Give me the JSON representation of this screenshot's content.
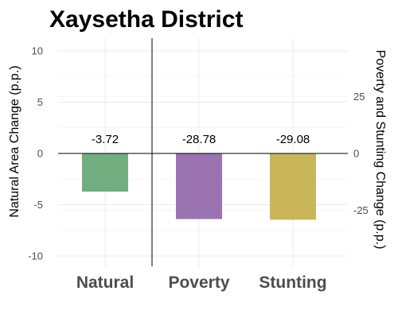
{
  "chart_data": {
    "type": "bar",
    "title": "Xaysetha District",
    "categories": [
      "Natural",
      "Poverty",
      "Stunting"
    ],
    "labels": [
      "-3.72",
      "-28.78",
      "-29.08"
    ],
    "colors": [
      "#72ad80",
      "#9b73b1",
      "#c9b55a"
    ],
    "axis_assignment": [
      "left",
      "right",
      "right"
    ],
    "series": [
      {
        "values": [
          -3.72,
          -28.78,
          -29.08
        ]
      }
    ],
    "y_left": {
      "label": "Natural Area Change (p.p.)",
      "ticks": [
        -10,
        -5,
        0,
        5,
        10
      ],
      "ylim": [
        -11,
        11
      ]
    },
    "y_right": {
      "label": "Poverty and Stunting Change (p.p.)",
      "ticks": [
        -25,
        0,
        25
      ],
      "ylim": [
        -49.5,
        49.5
      ]
    },
    "grid": true
  }
}
